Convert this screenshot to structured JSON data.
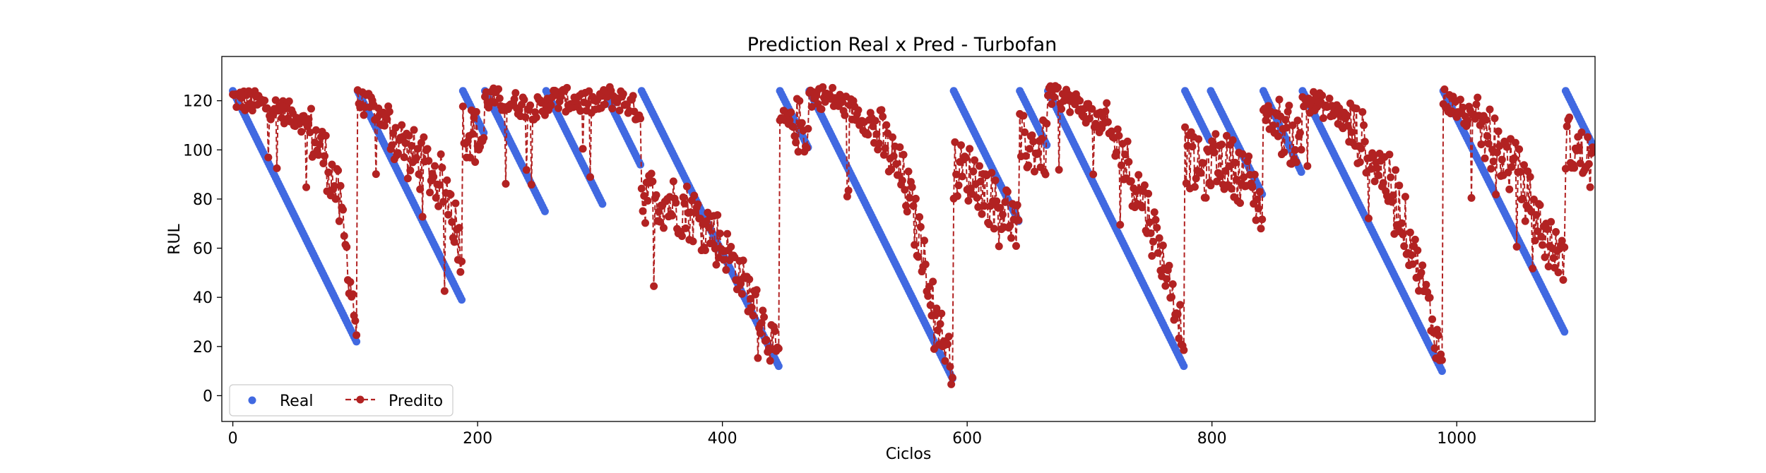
{
  "chart_data": {
    "type": "scatter+line",
    "title": "Prediction Real x Pred - Turbofan",
    "xlabel": "Ciclos",
    "ylabel": "RUL",
    "xlim": [
      -9,
      1113
    ],
    "ylim": [
      -10.5,
      138
    ],
    "xticks": [
      0,
      200,
      400,
      600,
      800,
      1000
    ],
    "yticks": [
      0,
      20,
      40,
      60,
      80,
      100,
      120
    ],
    "grid": false,
    "legend": {
      "placement": "lower-left",
      "ncol": 2
    },
    "colors": {
      "real": "#4169e1",
      "pred": "#b22222",
      "axes": "#000000"
    },
    "series": [
      {
        "name": "Real",
        "style": "scatter",
        "color": "#4169e1",
        "segments": [
          {
            "x_start": 0,
            "x_end": 101,
            "y_start": 124,
            "y_end": 22
          },
          {
            "x_start": 102,
            "x_end": 187,
            "y_start": 124,
            "y_end": 39
          },
          {
            "x_start": 188,
            "x_end": 205,
            "y_start": 124,
            "y_end": 107
          },
          {
            "x_start": 206,
            "x_end": 255,
            "y_start": 124,
            "y_end": 75
          },
          {
            "x_start": 256,
            "x_end": 302,
            "y_start": 124,
            "y_end": 78
          },
          {
            "x_start": 303,
            "x_end": 333,
            "y_start": 124,
            "y_end": 94
          },
          {
            "x_start": 334,
            "x_end": 446,
            "y_start": 124,
            "y_end": 12
          },
          {
            "x_start": 447,
            "x_end": 470,
            "y_start": 124,
            "y_end": 101
          },
          {
            "x_start": 471,
            "x_end": 588,
            "y_start": 124,
            "y_end": 7
          },
          {
            "x_start": 589,
            "x_end": 642,
            "y_start": 124,
            "y_end": 71
          },
          {
            "x_start": 643,
            "x_end": 665,
            "y_start": 124,
            "y_end": 102
          },
          {
            "x_start": 666,
            "x_end": 777,
            "y_start": 124,
            "y_end": 12
          },
          {
            "x_start": 778,
            "x_end": 798,
            "y_start": 124,
            "y_end": 104
          },
          {
            "x_start": 799,
            "x_end": 841,
            "y_start": 124,
            "y_end": 82
          },
          {
            "x_start": 842,
            "x_end": 873,
            "y_start": 124,
            "y_end": 91
          },
          {
            "x_start": 874,
            "x_end": 988,
            "y_start": 124,
            "y_end": 10
          },
          {
            "x_start": 989,
            "x_end": 1088,
            "y_start": 124,
            "y_end": 26
          },
          {
            "x_start": 1089,
            "x_end": 1112,
            "y_start": 124,
            "y_end": 101
          }
        ]
      },
      {
        "name": "Predito",
        "style": "dashed line with circle markers",
        "color": "#b22222",
        "anchors": [
          [
            0,
            121
          ],
          [
            20,
            119
          ],
          [
            40,
            116
          ],
          [
            55,
            113
          ],
          [
            65,
            106
          ],
          [
            75,
            98
          ],
          [
            85,
            83
          ],
          [
            90,
            68
          ],
          [
            95,
            50
          ],
          [
            101,
            28
          ],
          [
            102,
            120
          ],
          [
            115,
            117
          ],
          [
            130,
            108
          ],
          [
            145,
            98
          ],
          [
            160,
            92
          ],
          [
            175,
            84
          ],
          [
            187,
            60
          ],
          [
            188,
            110
          ],
          [
            196,
            106
          ],
          [
            205,
            104
          ],
          [
            206,
            121
          ],
          [
            230,
            119
          ],
          [
            255,
            116
          ],
          [
            256,
            121
          ],
          [
            280,
            120
          ],
          [
            302,
            118
          ],
          [
            303,
            122
          ],
          [
            320,
            120
          ],
          [
            333,
            115
          ],
          [
            334,
            82
          ],
          [
            350,
            80
          ],
          [
            370,
            76
          ],
          [
            390,
            68
          ],
          [
            405,
            58
          ],
          [
            420,
            44
          ],
          [
            435,
            28
          ],
          [
            446,
            14
          ],
          [
            447,
            112
          ],
          [
            460,
            110
          ],
          [
            470,
            108
          ],
          [
            471,
            122
          ],
          [
            490,
            121
          ],
          [
            510,
            115
          ],
          [
            530,
            105
          ],
          [
            550,
            85
          ],
          [
            565,
            55
          ],
          [
            575,
            32
          ],
          [
            588,
            12
          ],
          [
            589,
            92
          ],
          [
            605,
            90
          ],
          [
            620,
            80
          ],
          [
            635,
            74
          ],
          [
            642,
            66
          ],
          [
            643,
            103
          ],
          [
            655,
            101
          ],
          [
            665,
            100
          ],
          [
            666,
            123
          ],
          [
            685,
            120
          ],
          [
            705,
            113
          ],
          [
            725,
            100
          ],
          [
            745,
            78
          ],
          [
            760,
            55
          ],
          [
            777,
            25
          ],
          [
            778,
            98
          ],
          [
            790,
            92
          ],
          [
            798,
            88
          ],
          [
            799,
            97
          ],
          [
            815,
            94
          ],
          [
            830,
            87
          ],
          [
            841,
            76
          ],
          [
            842,
            115
          ],
          [
            860,
            108
          ],
          [
            873,
            101
          ],
          [
            874,
            121
          ],
          [
            900,
            116
          ],
          [
            925,
            103
          ],
          [
            950,
            82
          ],
          [
            970,
            50
          ],
          [
            988,
            14
          ],
          [
            989,
            121
          ],
          [
            1010,
            113
          ],
          [
            1030,
            103
          ],
          [
            1050,
            90
          ],
          [
            1065,
            72
          ],
          [
            1078,
            60
          ],
          [
            1088,
            55
          ],
          [
            1089,
            104
          ],
          [
            1100,
            98
          ],
          [
            1112,
            94
          ]
        ]
      }
    ]
  }
}
